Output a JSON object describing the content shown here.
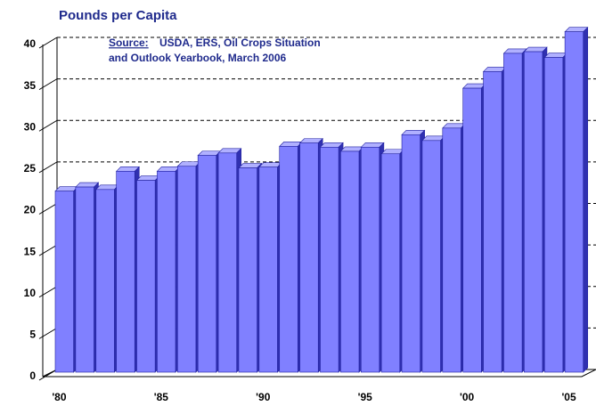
{
  "chart_data": {
    "type": "bar3d",
    "title": "Pounds per Capita",
    "annotation": {
      "label": "Source:",
      "lines": [
        "USDA, ERS, Oil Crops Situation",
        "and Outlook Yearbook, March 2006"
      ]
    },
    "categories": [
      "'80",
      null,
      null,
      null,
      null,
      "'85",
      null,
      null,
      null,
      null,
      "'90",
      null,
      null,
      null,
      null,
      "'95",
      null,
      null,
      null,
      null,
      "'00",
      null,
      null,
      null,
      null,
      "'05"
    ],
    "values": [
      21.8,
      22.3,
      22.0,
      24.2,
      23.1,
      24.2,
      24.8,
      26.1,
      26.4,
      24.6,
      24.7,
      27.2,
      27.6,
      27.1,
      26.6,
      27.1,
      26.3,
      28.6,
      27.9,
      29.4,
      34.2,
      36.2,
      38.4,
      38.6,
      37.9,
      41.0
    ],
    "color": "#8080ff",
    "ylim": [
      0,
      40
    ],
    "yticks": [
      0,
      5,
      10,
      15,
      20,
      25,
      30,
      35,
      40
    ],
    "grid": true
  }
}
